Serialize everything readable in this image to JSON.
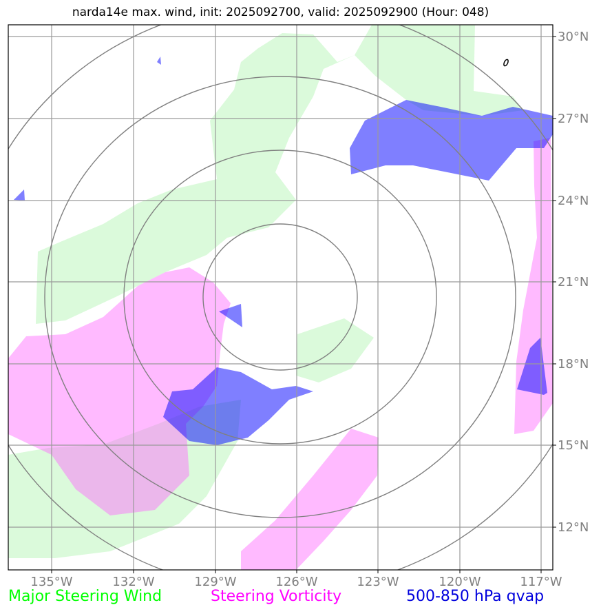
{
  "title": "narda14e max. wind, init: 2025092700, valid: 2025092900 (Hour: 048)",
  "map": {
    "lon_labels": [
      "135°W",
      "132°W",
      "129°W",
      "126°W",
      "123°W",
      "120°W",
      "117°W"
    ],
    "lat_labels": [
      "30°N",
      "27°N",
      "24°N",
      "21°N",
      "18°N",
      "15°N",
      "12°N"
    ]
  },
  "legend": [
    {
      "label": "Major Steering Wind",
      "color": "#00ff00"
    },
    {
      "label": "Steering Vorticity",
      "color": "#ff00ff"
    },
    {
      "label": "500-850 hPa qvap",
      "color": "#0000dd"
    }
  ],
  "colors": {
    "wind_fill": "#90ee90",
    "vorticity_fill": "#ff66ff",
    "qvap_fill": "#0000ff",
    "grid": "#9a9a9a",
    "range_rings": "#808080"
  }
}
